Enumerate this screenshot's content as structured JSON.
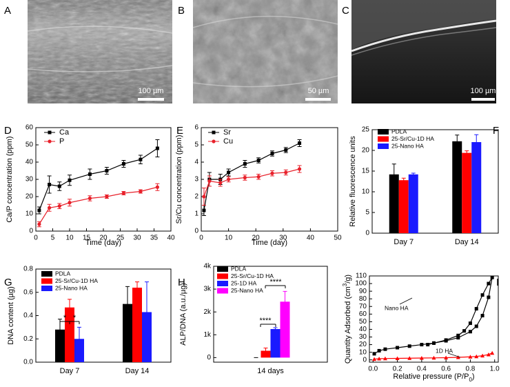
{
  "images": [
    {
      "label": "A",
      "scale": "100 µm"
    },
    {
      "label": "B",
      "scale": "50 µm"
    },
    {
      "label": "C",
      "scale": "100 µm"
    }
  ],
  "chart_data": [
    {
      "type": "line",
      "label": "D",
      "xlabel": "Time (day)",
      "ylabel": "Ca/P concentration (ppm)",
      "x": [
        1,
        4,
        7,
        10,
        16,
        21,
        26,
        31,
        36
      ],
      "xlim": [
        0,
        40
      ],
      "xticks": [
        0,
        5,
        10,
        15,
        20,
        25,
        30,
        35,
        40
      ],
      "ylim": [
        0,
        60
      ],
      "yticks": [
        0,
        10,
        20,
        30,
        40,
        50,
        60
      ],
      "legend": "upper left",
      "series": [
        {
          "name": "Ca",
          "color": "#000000",
          "marker": "square",
          "values": [
            12,
            27,
            26,
            29.5,
            33,
            35,
            39,
            41.5,
            48
          ],
          "errors": [
            2,
            5,
            2.5,
            3,
            3,
            2,
            2,
            2.5,
            5
          ]
        },
        {
          "name": "P",
          "color": "#e8202a",
          "marker": "circle",
          "values": [
            4,
            13.5,
            14.5,
            16.5,
            19,
            20,
            22,
            23,
            25.5
          ],
          "errors": [
            1.5,
            2,
            1.5,
            2,
            1.5,
            1,
            1,
            1,
            2
          ]
        }
      ]
    },
    {
      "type": "line",
      "label": "E",
      "xlabel": "Time (day)",
      "ylabel": "Sr/Cu concentration (ppm)",
      "x": [
        1,
        3,
        7,
        10,
        16,
        21,
        26,
        31,
        36
      ],
      "xlim": [
        0,
        50
      ],
      "xticks": [
        0,
        10,
        20,
        30,
        40,
        50
      ],
      "ylim": [
        0,
        6
      ],
      "yticks": [
        0,
        1,
        2,
        3,
        4,
        5,
        6
      ],
      "legend": "upper left",
      "series": [
        {
          "name": "Sr",
          "color": "#000000",
          "marker": "square",
          "values": [
            1.2,
            3.0,
            3.0,
            3.4,
            3.9,
            4.1,
            4.5,
            4.7,
            5.1
          ],
          "errors": [
            0.3,
            0.4,
            0.3,
            0.2,
            0.2,
            0.15,
            0.15,
            0.15,
            0.2
          ]
        },
        {
          "name": "Cu",
          "color": "#e8202a",
          "marker": "circle",
          "values": [
            2.0,
            2.9,
            2.8,
            3.0,
            3.1,
            3.15,
            3.35,
            3.4,
            3.6
          ],
          "errors": [
            0.5,
            0.3,
            0.2,
            0.15,
            0.15,
            0.15,
            0.15,
            0.15,
            0.2
          ]
        }
      ]
    },
    {
      "type": "bar",
      "label": "F",
      "ylabel": "Relative fluorescence units",
      "categories": [
        "Day 7",
        "Day 14"
      ],
      "ylim": [
        0,
        25
      ],
      "yticks": [
        0,
        5,
        10,
        15,
        20,
        25
      ],
      "legend": "upper left",
      "series": [
        {
          "name": "PDLA",
          "color": "#000000",
          "values": [
            14.2,
            22.2
          ],
          "errors": [
            2.5,
            1.5
          ]
        },
        {
          "name": "25-Sr/Cu-1D HA",
          "color": "#ff0000",
          "values": [
            12.8,
            19.4
          ],
          "errors": [
            0.5,
            0.5
          ]
        },
        {
          "name": "25-Nano HA",
          "color": "#1a1aff",
          "values": [
            14.2,
            22
          ],
          "errors": [
            0.3,
            1.8
          ]
        }
      ]
    },
    {
      "type": "bar",
      "label": "G",
      "ylabel": "DNA content (µg)",
      "categories": [
        "Day 7",
        "Day 14"
      ],
      "ylim": [
        0,
        0.8
      ],
      "yticks": [
        {
          "value": 0,
          "label": "0.0"
        },
        0.2,
        0.4,
        0.6,
        0.8
      ],
      "legend": "upper left",
      "annotations": [
        "*",
        "*"
      ],
      "series": [
        {
          "name": "PDLA",
          "color": "#000000",
          "values": [
            0.28,
            0.5
          ],
          "errors": [
            0.09,
            0.15
          ]
        },
        {
          "name": "25-Sr/Cu-1D HA",
          "color": "#ff0000",
          "values": [
            0.47,
            0.64
          ],
          "errors": [
            0.07,
            0.05
          ]
        },
        {
          "name": "25-Nano HA",
          "color": "#1a1aff",
          "values": [
            0.2,
            0.43
          ],
          "errors": [
            0.1,
            0.26
          ]
        }
      ]
    },
    {
      "type": "bar",
      "label": "H",
      "ylabel": "ALP/DNA (a.u./µg)",
      "categories": [
        "14 days"
      ],
      "ylim": [
        -200,
        4000
      ],
      "yticks": [
        0,
        {
          "value": 1000,
          "label": "1k"
        },
        {
          "value": 2000,
          "label": "2k"
        },
        {
          "value": 3000,
          "label": "3k"
        },
        {
          "value": 4000,
          "label": "4k"
        }
      ],
      "legend": "upper left",
      "annotations": [
        "****",
        "****"
      ],
      "series": [
        {
          "name": "PDLA",
          "color": "#000000",
          "values": [
            0
          ],
          "errors": [
            0
          ]
        },
        {
          "name": "25-Sr/Cu-1D HA",
          "color": "#ff0000",
          "values": [
            300
          ],
          "errors": [
            120
          ]
        },
        {
          "name": "25-1D HA",
          "color": "#1a1aff",
          "values": [
            1250
          ],
          "errors": [
            60
          ]
        },
        {
          "name": "25-Nano HA",
          "color": "#ff00ff",
          "values": [
            2450
          ],
          "errors": [
            450
          ]
        }
      ]
    },
    {
      "type": "line",
      "label": "I",
      "xlabel": [
        "Relative pressure (P/P",
        "0",
        ")"
      ],
      "ylabel": [
        "Quantity Adsorbed (cm",
        "3",
        "/g)"
      ],
      "xlim": [
        -0.03,
        1.03
      ],
      "xticks": [
        {
          "value": 0,
          "label": "0.0"
        },
        0.2,
        0.4,
        0.6,
        0.8,
        {
          "value": 1,
          "label": "1.0"
        }
      ],
      "ylim": [
        -3,
        110
      ],
      "yticks": [
        0,
        10,
        20,
        30,
        40,
        50,
        60,
        70,
        80,
        90,
        100,
        110
      ],
      "series": [
        {
          "name": "Nano HA",
          "color": "#000000",
          "marker": "square",
          "x": [
            0.01,
            0.05,
            0.1,
            0.2,
            0.3,
            0.4,
            0.5,
            0.6,
            0.7,
            0.8,
            0.85,
            0.9,
            0.95,
            0.98,
            0.95,
            0.9,
            0.85,
            0.8,
            0.75,
            0.7,
            0.6,
            0.5,
            0.45
          ],
          "values": [
            8,
            12,
            14,
            16,
            18,
            20,
            22,
            25,
            29,
            37,
            44,
            58,
            82,
            108,
            100,
            85,
            67,
            48,
            38,
            32,
            26,
            22,
            20
          ]
        },
        {
          "name": "1D HA",
          "color": "#ff0000",
          "marker": "triangle",
          "x": [
            0.01,
            0.05,
            0.1,
            0.2,
            0.3,
            0.4,
            0.5,
            0.6,
            0.7,
            0.8,
            0.85,
            0.9,
            0.95,
            0.98
          ],
          "values": [
            1,
            1.5,
            1.8,
            2,
            2.2,
            2.4,
            2.6,
            2.9,
            3.3,
            4,
            4.5,
            5.5,
            7,
            9
          ]
        }
      ]
    }
  ]
}
